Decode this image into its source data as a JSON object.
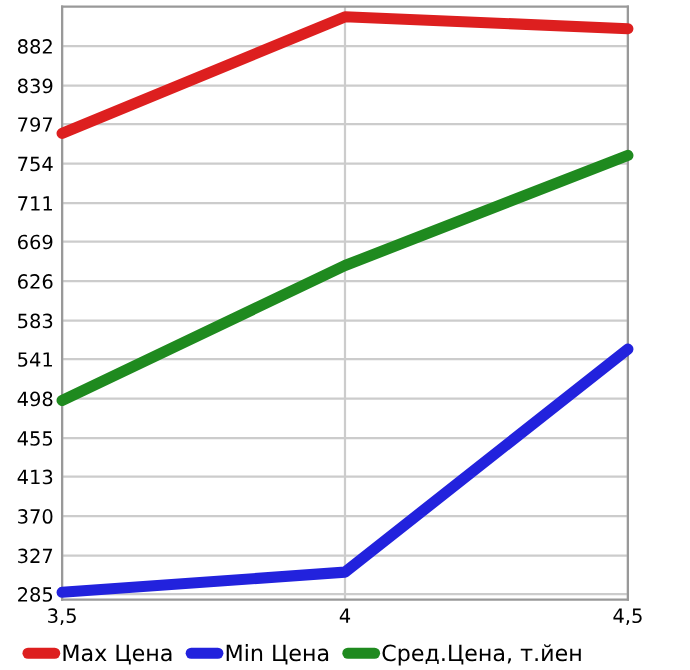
{
  "chart_data": {
    "type": "line",
    "x": [
      3.5,
      4,
      4.5
    ],
    "series": [
      {
        "name": "Max Цена",
        "color": "#dd1f1f",
        "values": [
          787,
          914,
          901
        ]
      },
      {
        "name": "Min Цена",
        "color": "#2222dd",
        "values": [
          287,
          309,
          552
        ]
      },
      {
        "name": "Сред.Цена, т.йен",
        "color": "#1f8a1f",
        "values": [
          496,
          643,
          763
        ]
      }
    ],
    "xlim": [
      3.5,
      4.5
    ],
    "xticks": [
      {
        "value": 3.5,
        "label": "3,5"
      },
      4,
      {
        "value": 4.5,
        "label": "4,5"
      }
    ],
    "ylim": [
      279,
      925
    ],
    "yticks": [
      285,
      327,
      370,
      413,
      455,
      498,
      541,
      583,
      626,
      669,
      711,
      754,
      797,
      839,
      882
    ],
    "grid": true,
    "legend": "bottom",
    "marker": "none",
    "line_style": "solid"
  }
}
